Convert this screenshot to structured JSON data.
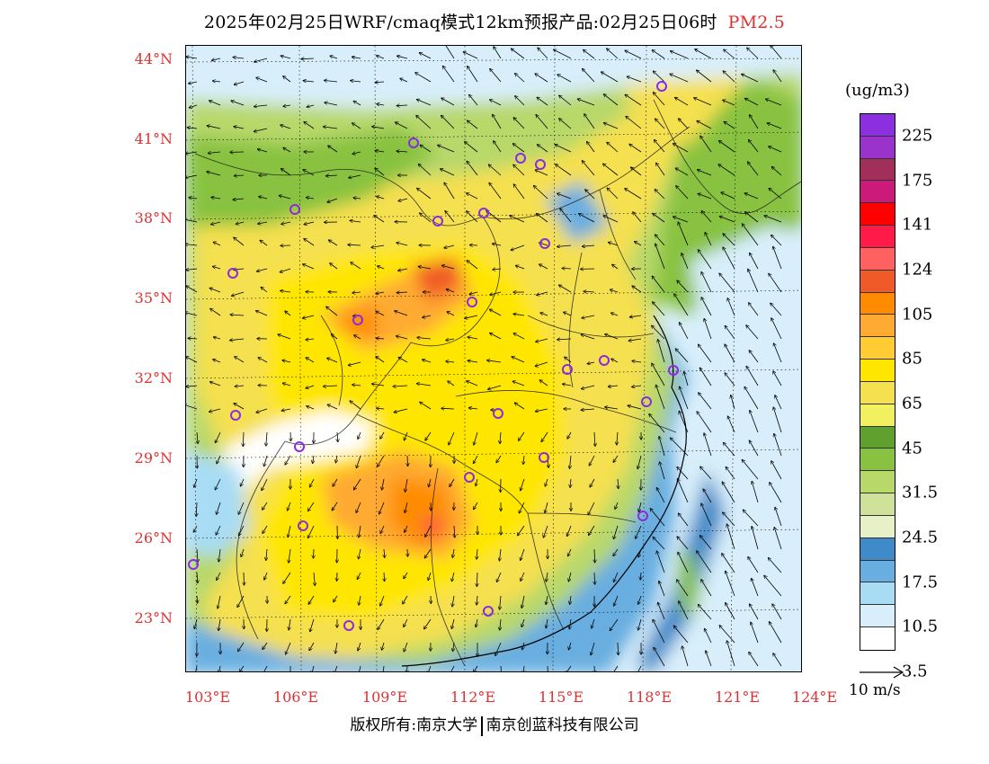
{
  "title": {
    "main": "2025年02月25日WRF/cmaq模式12km预报产品:02月25日06时",
    "species": "PM2.5"
  },
  "map": {
    "lat_labels": [
      "44°N",
      "41°N",
      "38°N",
      "35°N",
      "32°N",
      "29°N",
      "26°N",
      "23°N"
    ],
    "lon_labels": [
      "103°E",
      "106°E",
      "109°E",
      "112°E",
      "115°E",
      "118°E",
      "121°E",
      "124°E"
    ],
    "bounds": {
      "lon_min": 102.8,
      "lon_max": 124.0,
      "lat_min": 20.9,
      "lat_max": 44.6
    },
    "colors": {
      "sea": "#d6effa",
      "boundary": "#1a1a1a",
      "station_marker": "#8a2be2",
      "wind_arrow": "#000000"
    },
    "stations_note": "purple circles mark city monitoring sites"
  },
  "legend": {
    "unit": "(ug/m3)",
    "ticks": [
      "225",
      "175",
      "141",
      "124",
      "105",
      "85",
      "65",
      "45",
      "31.5",
      "24.5",
      "17.5",
      "10.5",
      "3.5"
    ],
    "colors": [
      "#8b2fe0",
      "#9933cc",
      "#a0305a",
      "#cc1a7a",
      "#ff0000",
      "#ff1a4a",
      "#ff6060",
      "#f05a28",
      "#ff8c00",
      "#ffaa33",
      "#ffcc33",
      "#ffe600",
      "#f5e050",
      "#f0f060",
      "#5fa02f",
      "#88c240",
      "#b8d86a",
      "#cfe29a",
      "#e8f0c8",
      "#3f8ac9",
      "#69aee0",
      "#a8dcf5",
      "#d8effb",
      "#ffffff"
    ]
  },
  "wind_reference": {
    "label": "10 m/s"
  },
  "footer": {
    "left": "版权所有:南京大学",
    "right": "南京创蓝科技有限公司"
  }
}
